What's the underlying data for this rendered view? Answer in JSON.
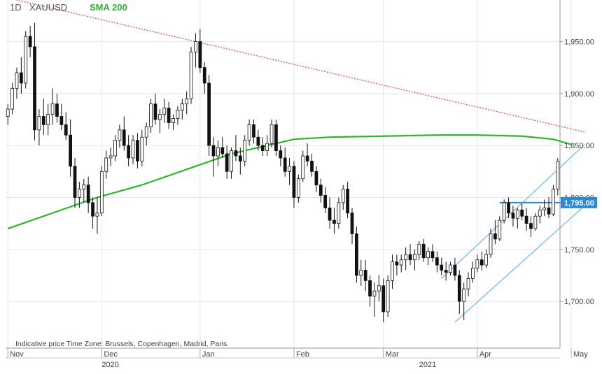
{
  "header": {
    "timeframe": "1D",
    "symbol": "XAUUSD",
    "indicator": "SMA 200"
  },
  "footer": {
    "note": "Indicative price   Time Zone: Brussels, Copenhagen, Madrid, Paris"
  },
  "colors": {
    "up": "#ffffff",
    "down": "#111111",
    "sma": "#2db52d",
    "channel": "#7cc0ee",
    "resistance": "#e05050",
    "level": "#2a8ad8",
    "grid": "#e6e6e6"
  },
  "chart_data": {
    "type": "candlestick",
    "title": "",
    "symbol": "XAUUSD",
    "timeframe": "1D",
    "ylim": [
      1655,
      1990
    ],
    "grid": true,
    "y_ticks": [
      "1,700.00",
      "1,750.00",
      "1,800.00",
      "1,850.00",
      "1,900.00",
      "1,950.00"
    ],
    "y_tick_values": [
      1700,
      1750,
      1800,
      1850,
      1900,
      1950
    ],
    "x_month_labels": [
      "Nov",
      "Dec",
      "Jan",
      "Feb",
      "Mar",
      "Apr",
      "May"
    ],
    "x_month_index": [
      0,
      21,
      43,
      64,
      84,
      105,
      126
    ],
    "x_year_labels": [
      "2020",
      "2021"
    ],
    "x_year_index": [
      21,
      92
    ],
    "current_price_label": "1,795.00",
    "current_price": 1795,
    "candles": [
      [
        1878,
        1890,
        1870,
        1885
      ],
      [
        1885,
        1910,
        1880,
        1905
      ],
      [
        1905,
        1925,
        1895,
        1920
      ],
      [
        1920,
        1935,
        1900,
        1910
      ],
      [
        1910,
        1960,
        1905,
        1955
      ],
      [
        1955,
        1965,
        1935,
        1945
      ],
      [
        1945,
        1968,
        1855,
        1865
      ],
      [
        1865,
        1885,
        1850,
        1878
      ],
      [
        1878,
        1895,
        1860,
        1870
      ],
      [
        1870,
        1890,
        1860,
        1880
      ],
      [
        1880,
        1905,
        1870,
        1890
      ],
      [
        1890,
        1900,
        1872,
        1878
      ],
      [
        1878,
        1890,
        1865,
        1870
      ],
      [
        1870,
        1882,
        1855,
        1860
      ],
      [
        1860,
        1875,
        1820,
        1830
      ],
      [
        1830,
        1838,
        1790,
        1800
      ],
      [
        1800,
        1815,
        1790,
        1808
      ],
      [
        1808,
        1818,
        1795,
        1812
      ],
      [
        1812,
        1820,
        1785,
        1795
      ],
      [
        1795,
        1800,
        1770,
        1782
      ],
      [
        1782,
        1800,
        1765,
        1785
      ],
      [
        1785,
        1830,
        1782,
        1825
      ],
      [
        1825,
        1845,
        1818,
        1838
      ],
      [
        1838,
        1848,
        1830,
        1840
      ],
      [
        1840,
        1860,
        1835,
        1855
      ],
      [
        1855,
        1870,
        1848,
        1865
      ],
      [
        1865,
        1878,
        1845,
        1850
      ],
      [
        1850,
        1860,
        1830,
        1838
      ],
      [
        1838,
        1860,
        1832,
        1855
      ],
      [
        1855,
        1862,
        1828,
        1835
      ],
      [
        1835,
        1865,
        1830,
        1858
      ],
      [
        1858,
        1872,
        1850,
        1868
      ],
      [
        1868,
        1895,
        1862,
        1890
      ],
      [
        1890,
        1900,
        1870,
        1875
      ],
      [
        1875,
        1885,
        1862,
        1880
      ],
      [
        1880,
        1895,
        1872,
        1886
      ],
      [
        1886,
        1892,
        1866,
        1872
      ],
      [
        1872,
        1880,
        1865,
        1876
      ],
      [
        1876,
        1888,
        1870,
        1884
      ],
      [
        1884,
        1895,
        1875,
        1890
      ],
      [
        1890,
        1902,
        1880,
        1895
      ],
      [
        1895,
        1945,
        1890,
        1940
      ],
      [
        1940,
        1958,
        1925,
        1950
      ],
      [
        1950,
        1962,
        1920,
        1925
      ],
      [
        1925,
        1930,
        1900,
        1910
      ],
      [
        1910,
        1918,
        1840,
        1850
      ],
      [
        1850,
        1858,
        1820,
        1840
      ],
      [
        1840,
        1855,
        1830,
        1848
      ],
      [
        1848,
        1858,
        1838,
        1842
      ],
      [
        1842,
        1850,
        1818,
        1825
      ],
      [
        1825,
        1848,
        1818,
        1845
      ],
      [
        1845,
        1860,
        1835,
        1840
      ],
      [
        1840,
        1848,
        1822,
        1835
      ],
      [
        1835,
        1860,
        1830,
        1855
      ],
      [
        1855,
        1875,
        1850,
        1870
      ],
      [
        1870,
        1875,
        1852,
        1858
      ],
      [
        1858,
        1865,
        1845,
        1850
      ],
      [
        1850,
        1858,
        1840,
        1845
      ],
      [
        1845,
        1860,
        1840,
        1852
      ],
      [
        1852,
        1875,
        1848,
        1870
      ],
      [
        1870,
        1875,
        1840,
        1845
      ],
      [
        1845,
        1850,
        1830,
        1838
      ],
      [
        1838,
        1848,
        1820,
        1825
      ],
      [
        1825,
        1838,
        1812,
        1830
      ],
      [
        1830,
        1835,
        1790,
        1800
      ],
      [
        1800,
        1822,
        1795,
        1818
      ],
      [
        1818,
        1845,
        1815,
        1840
      ],
      [
        1840,
        1852,
        1830,
        1835
      ],
      [
        1835,
        1842,
        1820,
        1825
      ],
      [
        1825,
        1830,
        1805,
        1812
      ],
      [
        1812,
        1818,
        1795,
        1802
      ],
      [
        1802,
        1810,
        1785,
        1790
      ],
      [
        1790,
        1800,
        1770,
        1778
      ],
      [
        1778,
        1790,
        1765,
        1775
      ],
      [
        1775,
        1800,
        1770,
        1795
      ],
      [
        1795,
        1812,
        1788,
        1808
      ],
      [
        1808,
        1815,
        1780,
        1785
      ],
      [
        1785,
        1790,
        1755,
        1765
      ],
      [
        1765,
        1772,
        1718,
        1725
      ],
      [
        1725,
        1740,
        1715,
        1730
      ],
      [
        1730,
        1740,
        1710,
        1720
      ],
      [
        1720,
        1725,
        1695,
        1705
      ],
      [
        1705,
        1718,
        1685,
        1710
      ],
      [
        1710,
        1725,
        1700,
        1715
      ],
      [
        1715,
        1722,
        1680,
        1690
      ],
      [
        1690,
        1725,
        1685,
        1720
      ],
      [
        1720,
        1745,
        1712,
        1738
      ],
      [
        1738,
        1745,
        1725,
        1735
      ],
      [
        1735,
        1745,
        1728,
        1740
      ],
      [
        1740,
        1752,
        1730,
        1745
      ],
      [
        1745,
        1755,
        1735,
        1740
      ],
      [
        1740,
        1750,
        1730,
        1745
      ],
      [
        1745,
        1758,
        1740,
        1755
      ],
      [
        1755,
        1760,
        1738,
        1742
      ],
      [
        1742,
        1752,
        1735,
        1748
      ],
      [
        1748,
        1755,
        1738,
        1742
      ],
      [
        1742,
        1748,
        1728,
        1735
      ],
      [
        1735,
        1742,
        1725,
        1730
      ],
      [
        1730,
        1738,
        1720,
        1728
      ],
      [
        1728,
        1738,
        1725,
        1735
      ],
      [
        1735,
        1742,
        1720,
        1725
      ],
      [
        1725,
        1730,
        1688,
        1700
      ],
      [
        1700,
        1718,
        1682,
        1712
      ],
      [
        1712,
        1728,
        1705,
        1722
      ],
      [
        1722,
        1738,
        1718,
        1732
      ],
      [
        1732,
        1745,
        1728,
        1740
      ],
      [
        1740,
        1748,
        1730,
        1735
      ],
      [
        1735,
        1750,
        1732,
        1745
      ],
      [
        1745,
        1770,
        1742,
        1765
      ],
      [
        1765,
        1778,
        1755,
        1760
      ],
      [
        1760,
        1782,
        1758,
        1778
      ],
      [
        1778,
        1798,
        1775,
        1795
      ],
      [
        1795,
        1800,
        1780,
        1785
      ],
      [
        1785,
        1792,
        1772,
        1780
      ],
      [
        1780,
        1790,
        1770,
        1788
      ],
      [
        1788,
        1794,
        1778,
        1782
      ],
      [
        1782,
        1790,
        1768,
        1775
      ],
      [
        1775,
        1782,
        1762,
        1770
      ],
      [
        1770,
        1785,
        1768,
        1782
      ],
      [
        1782,
        1792,
        1775,
        1788
      ],
      [
        1788,
        1798,
        1782,
        1790
      ],
      [
        1790,
        1800,
        1780,
        1784
      ],
      [
        1784,
        1812,
        1782,
        1808
      ],
      [
        1808,
        1838,
        1802,
        1835
      ]
    ],
    "sma200": [
      [
        0,
        1770
      ],
      [
        10,
        1785
      ],
      [
        20,
        1800
      ],
      [
        30,
        1812
      ],
      [
        42,
        1830
      ],
      [
        50,
        1842
      ],
      [
        60,
        1852
      ],
      [
        64,
        1856
      ],
      [
        72,
        1858
      ],
      [
        84,
        1859
      ],
      [
        96,
        1860
      ],
      [
        105,
        1860
      ],
      [
        115,
        1859
      ],
      [
        122,
        1856
      ],
      [
        126,
        1851
      ]
    ],
    "resistance_line": [
      [
        0,
        1992
      ],
      [
        129,
        1863
      ]
    ],
    "channel_upper": [
      [
        97,
        1722
      ],
      [
        129,
        1851
      ]
    ],
    "channel_lower": [
      [
        100,
        1680
      ],
      [
        129,
        1792
      ]
    ],
    "level_line": [
      [
        110,
        1795
      ],
      [
        129,
        1795
      ]
    ]
  }
}
